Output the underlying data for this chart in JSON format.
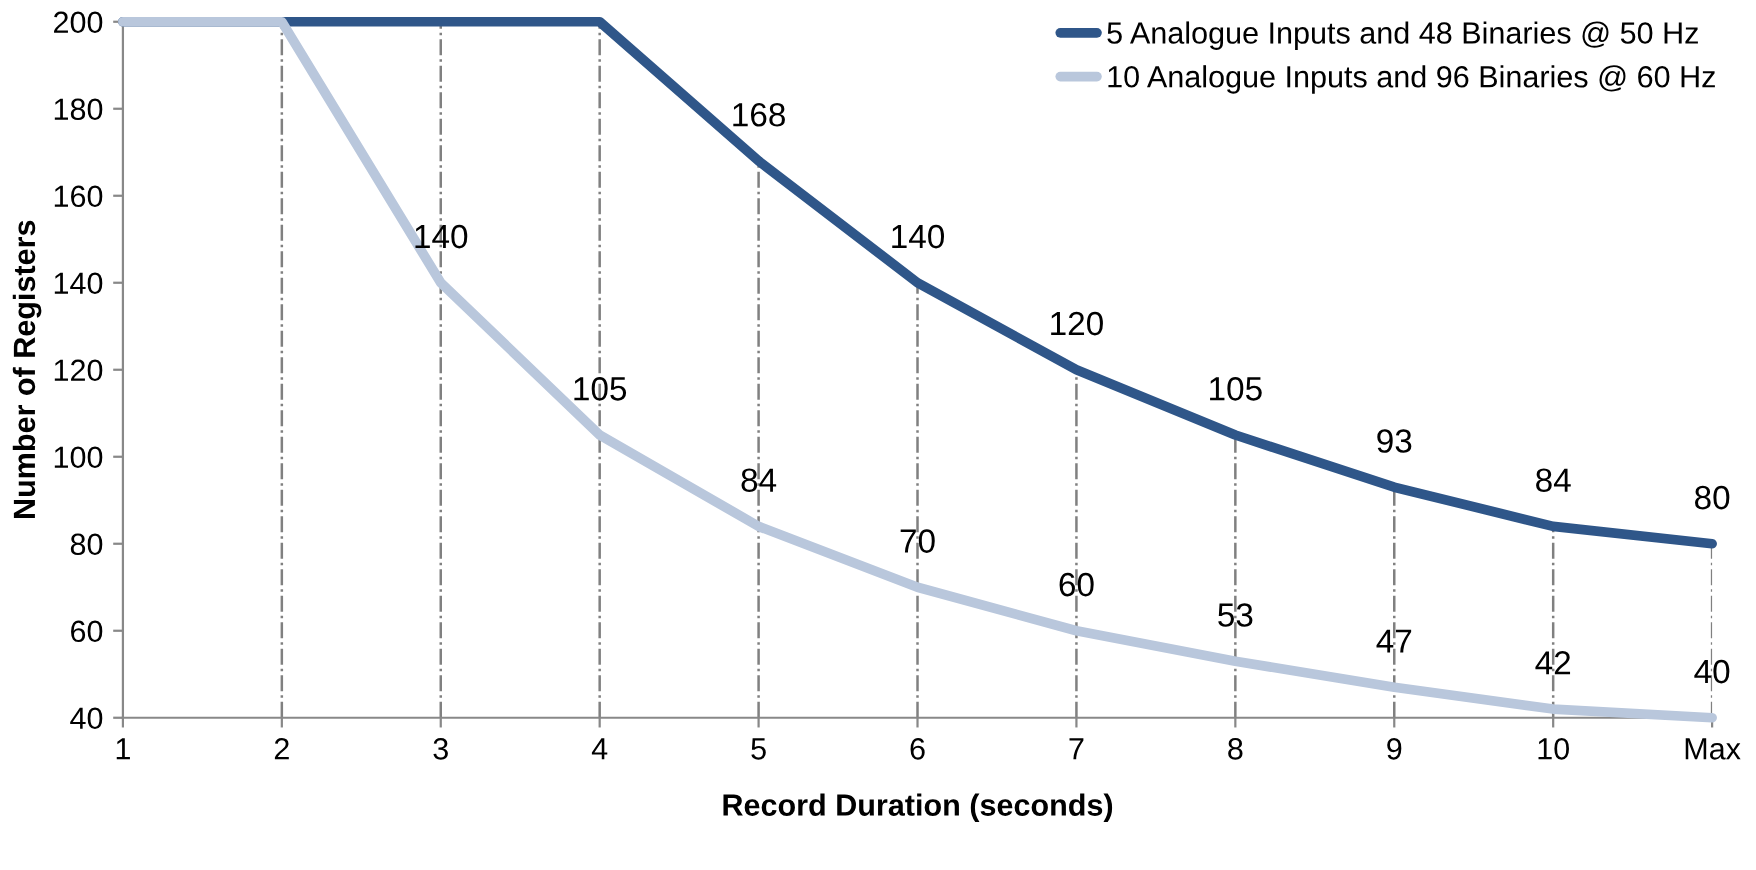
{
  "chart_data": {
    "type": "line",
    "xlabel": "Record Duration (seconds)",
    "ylabel": "Number of Registers",
    "categories": [
      "1",
      "2",
      "3",
      "4",
      "5",
      "6",
      "7",
      "8",
      "9",
      "10",
      "Max"
    ],
    "series": [
      {
        "name": "5 Analogue Inputs and 48 Binaries @ 50 Hz",
        "color": "#2f5689",
        "values": [
          200,
          200,
          200,
          200,
          168,
          140,
          120,
          105,
          93,
          84,
          80
        ],
        "value_labels": [
          null,
          null,
          null,
          null,
          "168",
          "140",
          "120",
          "105",
          "93",
          "84",
          "80"
        ]
      },
      {
        "name": "10 Analogue Inputs and 96 Binaries @ 60 Hz",
        "color": "#b9c7dc",
        "values": [
          200,
          200,
          140,
          105,
          84,
          70,
          60,
          53,
          47,
          42,
          40
        ],
        "value_labels": [
          null,
          null,
          "140",
          "105",
          "84",
          "70",
          "60",
          "53",
          "47",
          "42",
          "40"
        ]
      }
    ],
    "ylim": [
      40,
      200
    ],
    "yticks": [
      40,
      60,
      80,
      100,
      120,
      140,
      160,
      180,
      200
    ],
    "grid": "x",
    "legend": "top right",
    "marker": "none",
    "line_style": "solid"
  }
}
